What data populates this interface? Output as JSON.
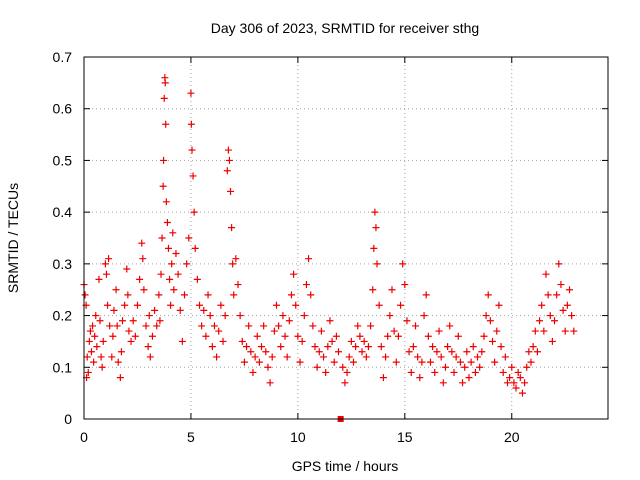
{
  "chart_data": {
    "type": "scatter",
    "title": "Day 306 of 2023, SRMTID for receiver sthg",
    "xlabel": "GPS time / hours",
    "ylabel": "SRMTID / TECUs",
    "xlim": [
      0,
      24.5
    ],
    "ylim": [
      0,
      0.7
    ],
    "xticks": [
      0,
      5,
      10,
      15,
      20
    ],
    "xtick_labels": [
      "0",
      "5",
      "10",
      "15",
      "20"
    ],
    "yticks": [
      0,
      0.1,
      0.2,
      0.3,
      0.4,
      0.5,
      0.6,
      0.7
    ],
    "ytick_labels": [
      "0",
      "0.1",
      "0.2",
      "0.3",
      "0.4",
      "0.5",
      "0.6",
      "0.7"
    ],
    "grid": true,
    "marker": "plus",
    "series_color": "#ee0000",
    "outlier_marker": {
      "x": 12.0,
      "y": 0.0,
      "shape": "square"
    },
    "series": [
      {
        "name": "SRMTID",
        "points": [
          [
            0.0,
            0.26
          ],
          [
            0.05,
            0.24
          ],
          [
            0.1,
            0.22
          ],
          [
            0.12,
            0.08
          ],
          [
            0.15,
            0.12
          ],
          [
            0.2,
            0.09
          ],
          [
            0.25,
            0.15
          ],
          [
            0.3,
            0.17
          ],
          [
            0.35,
            0.13
          ],
          [
            0.4,
            0.18
          ],
          [
            0.45,
            0.11
          ],
          [
            0.5,
            0.16
          ],
          [
            0.55,
            0.2
          ],
          [
            0.6,
            0.14
          ],
          [
            0.7,
            0.27
          ],
          [
            0.75,
            0.19
          ],
          [
            0.8,
            0.12
          ],
          [
            0.85,
            0.1
          ],
          [
            0.9,
            0.15
          ],
          [
            1.0,
            0.3
          ],
          [
            1.05,
            0.28
          ],
          [
            1.1,
            0.22
          ],
          [
            1.15,
            0.31
          ],
          [
            1.2,
            0.18
          ],
          [
            1.3,
            0.12
          ],
          [
            1.35,
            0.16
          ],
          [
            1.4,
            0.21
          ],
          [
            1.5,
            0.25
          ],
          [
            1.55,
            0.18
          ],
          [
            1.6,
            0.11
          ],
          [
            1.7,
            0.08
          ],
          [
            1.75,
            0.13
          ],
          [
            1.8,
            0.19
          ],
          [
            1.9,
            0.22
          ],
          [
            2.0,
            0.29
          ],
          [
            2.05,
            0.24
          ],
          [
            2.1,
            0.17
          ],
          [
            2.2,
            0.15
          ],
          [
            2.3,
            0.19
          ],
          [
            2.4,
            0.16
          ],
          [
            2.5,
            0.22
          ],
          [
            2.6,
            0.27
          ],
          [
            2.7,
            0.34
          ],
          [
            2.75,
            0.31
          ],
          [
            2.8,
            0.25
          ],
          [
            2.9,
            0.18
          ],
          [
            3.0,
            0.14
          ],
          [
            3.05,
            0.2
          ],
          [
            3.1,
            0.12
          ],
          [
            3.2,
            0.16
          ],
          [
            3.3,
            0.21
          ],
          [
            3.4,
            0.18
          ],
          [
            3.5,
            0.24
          ],
          [
            3.55,
            0.19
          ],
          [
            3.6,
            0.28
          ],
          [
            3.65,
            0.35
          ],
          [
            3.7,
            0.45
          ],
          [
            3.72,
            0.5
          ],
          [
            3.75,
            0.62
          ],
          [
            3.78,
            0.66
          ],
          [
            3.8,
            0.65
          ],
          [
            3.82,
            0.57
          ],
          [
            3.85,
            0.42
          ],
          [
            3.9,
            0.38
          ],
          [
            3.95,
            0.33
          ],
          [
            4.0,
            0.27
          ],
          [
            4.05,
            0.22
          ],
          [
            4.1,
            0.3
          ],
          [
            4.15,
            0.36
          ],
          [
            4.2,
            0.25
          ],
          [
            4.3,
            0.32
          ],
          [
            4.4,
            0.28
          ],
          [
            4.5,
            0.21
          ],
          [
            4.6,
            0.15
          ],
          [
            4.7,
            0.24
          ],
          [
            4.8,
            0.3
          ],
          [
            4.9,
            0.35
          ],
          [
            5.0,
            0.63
          ],
          [
            5.02,
            0.57
          ],
          [
            5.05,
            0.52
          ],
          [
            5.1,
            0.47
          ],
          [
            5.15,
            0.4
          ],
          [
            5.2,
            0.33
          ],
          [
            5.3,
            0.27
          ],
          [
            5.4,
            0.22
          ],
          [
            5.5,
            0.18
          ],
          [
            5.6,
            0.21
          ],
          [
            5.7,
            0.16
          ],
          [
            5.8,
            0.24
          ],
          [
            5.9,
            0.2
          ],
          [
            6.0,
            0.14
          ],
          [
            6.1,
            0.18
          ],
          [
            6.2,
            0.12
          ],
          [
            6.3,
            0.17
          ],
          [
            6.4,
            0.22
          ],
          [
            6.5,
            0.15
          ],
          [
            6.6,
            0.2
          ],
          [
            6.7,
            0.48
          ],
          [
            6.75,
            0.52
          ],
          [
            6.8,
            0.5
          ],
          [
            6.85,
            0.44
          ],
          [
            6.9,
            0.37
          ],
          [
            6.95,
            0.3
          ],
          [
            7.0,
            0.24
          ],
          [
            7.1,
            0.31
          ],
          [
            7.2,
            0.26
          ],
          [
            7.3,
            0.2
          ],
          [
            7.4,
            0.15
          ],
          [
            7.5,
            0.11
          ],
          [
            7.6,
            0.14
          ],
          [
            7.7,
            0.18
          ],
          [
            7.8,
            0.13
          ],
          [
            7.9,
            0.09
          ],
          [
            8.0,
            0.12
          ],
          [
            8.1,
            0.16
          ],
          [
            8.2,
            0.11
          ],
          [
            8.3,
            0.14
          ],
          [
            8.4,
            0.18
          ],
          [
            8.5,
            0.13
          ],
          [
            8.6,
            0.1
          ],
          [
            8.7,
            0.07
          ],
          [
            8.8,
            0.12
          ],
          [
            8.9,
            0.17
          ],
          [
            9.0,
            0.22
          ],
          [
            9.1,
            0.18
          ],
          [
            9.2,
            0.14
          ],
          [
            9.3,
            0.2
          ],
          [
            9.4,
            0.16
          ],
          [
            9.5,
            0.12
          ],
          [
            9.6,
            0.19
          ],
          [
            9.7,
            0.24
          ],
          [
            9.8,
            0.28
          ],
          [
            9.9,
            0.22
          ],
          [
            10.0,
            0.16
          ],
          [
            10.1,
            0.11
          ],
          [
            10.2,
            0.15
          ],
          [
            10.3,
            0.2
          ],
          [
            10.4,
            0.26
          ],
          [
            10.5,
            0.31
          ],
          [
            10.6,
            0.24
          ],
          [
            10.7,
            0.18
          ],
          [
            10.8,
            0.14
          ],
          [
            10.9,
            0.1
          ],
          [
            11.0,
            0.13
          ],
          [
            11.1,
            0.17
          ],
          [
            11.2,
            0.12
          ],
          [
            11.3,
            0.09
          ],
          [
            11.4,
            0.14
          ],
          [
            11.5,
            0.19
          ],
          [
            11.6,
            0.15
          ],
          [
            11.7,
            0.11
          ],
          [
            11.8,
            0.16
          ],
          [
            11.9,
            0.13
          ],
          [
            12.1,
            0.1
          ],
          [
            12.2,
            0.07
          ],
          [
            12.3,
            0.09
          ],
          [
            12.4,
            0.12
          ],
          [
            12.5,
            0.15
          ],
          [
            12.6,
            0.11
          ],
          [
            12.7,
            0.14
          ],
          [
            12.8,
            0.18
          ],
          [
            12.9,
            0.16
          ],
          [
            13.0,
            0.13
          ],
          [
            13.1,
            0.15
          ],
          [
            13.2,
            0.12
          ],
          [
            13.3,
            0.14
          ],
          [
            13.4,
            0.18
          ],
          [
            13.5,
            0.25
          ],
          [
            13.55,
            0.33
          ],
          [
            13.6,
            0.4
          ],
          [
            13.65,
            0.37
          ],
          [
            13.7,
            0.3
          ],
          [
            13.8,
            0.22
          ],
          [
            13.9,
            0.14
          ],
          [
            14.0,
            0.08
          ],
          [
            14.1,
            0.12
          ],
          [
            14.2,
            0.16
          ],
          [
            14.3,
            0.2
          ],
          [
            14.4,
            0.25
          ],
          [
            14.5,
            0.17
          ],
          [
            14.6,
            0.11
          ],
          [
            14.7,
            0.16
          ],
          [
            14.8,
            0.22
          ],
          [
            14.9,
            0.3
          ],
          [
            15.0,
            0.26
          ],
          [
            15.1,
            0.19
          ],
          [
            15.2,
            0.13
          ],
          [
            15.3,
            0.09
          ],
          [
            15.4,
            0.14
          ],
          [
            15.5,
            0.18
          ],
          [
            15.6,
            0.12
          ],
          [
            15.7,
            0.08
          ],
          [
            15.8,
            0.11
          ],
          [
            15.9,
            0.2
          ],
          [
            16.0,
            0.24
          ],
          [
            16.1,
            0.16
          ],
          [
            16.2,
            0.11
          ],
          [
            16.3,
            0.14
          ],
          [
            16.4,
            0.09
          ],
          [
            16.5,
            0.13
          ],
          [
            16.6,
            0.17
          ],
          [
            16.7,
            0.12
          ],
          [
            16.8,
            0.07
          ],
          [
            16.9,
            0.1
          ],
          [
            17.0,
            0.14
          ],
          [
            17.1,
            0.18
          ],
          [
            17.2,
            0.13
          ],
          [
            17.3,
            0.09
          ],
          [
            17.4,
            0.12
          ],
          [
            17.5,
            0.16
          ],
          [
            17.6,
            0.11
          ],
          [
            17.7,
            0.07
          ],
          [
            17.8,
            0.1
          ],
          [
            17.9,
            0.13
          ],
          [
            18.0,
            0.08
          ],
          [
            18.1,
            0.11
          ],
          [
            18.2,
            0.14
          ],
          [
            18.3,
            0.09
          ],
          [
            18.4,
            0.12
          ],
          [
            18.5,
            0.1
          ],
          [
            18.6,
            0.13
          ],
          [
            18.7,
            0.16
          ],
          [
            18.8,
            0.2
          ],
          [
            18.9,
            0.24
          ],
          [
            19.0,
            0.19
          ],
          [
            19.1,
            0.15
          ],
          [
            19.2,
            0.11
          ],
          [
            19.3,
            0.17
          ],
          [
            19.4,
            0.22
          ],
          [
            19.5,
            0.14
          ],
          [
            19.6,
            0.09
          ],
          [
            19.7,
            0.12
          ],
          [
            19.8,
            0.07
          ],
          [
            19.9,
            0.08
          ],
          [
            20.0,
            0.1
          ],
          [
            20.1,
            0.07
          ],
          [
            20.2,
            0.06
          ],
          [
            20.3,
            0.09
          ],
          [
            20.4,
            0.08
          ],
          [
            20.5,
            0.05
          ],
          [
            20.6,
            0.07
          ],
          [
            20.7,
            0.1
          ],
          [
            20.8,
            0.13
          ],
          [
            20.9,
            0.11
          ],
          [
            21.0,
            0.14
          ],
          [
            21.1,
            0.17
          ],
          [
            21.2,
            0.13
          ],
          [
            21.3,
            0.19
          ],
          [
            21.4,
            0.22
          ],
          [
            21.5,
            0.17
          ],
          [
            21.6,
            0.28
          ],
          [
            21.7,
            0.24
          ],
          [
            21.8,
            0.2
          ],
          [
            21.9,
            0.15
          ],
          [
            22.0,
            0.19
          ],
          [
            22.1,
            0.24
          ],
          [
            22.2,
            0.3
          ],
          [
            22.3,
            0.26
          ],
          [
            22.4,
            0.21
          ],
          [
            22.5,
            0.17
          ],
          [
            22.6,
            0.22
          ],
          [
            22.7,
            0.25
          ],
          [
            22.8,
            0.2
          ],
          [
            22.9,
            0.17
          ]
        ]
      }
    ]
  }
}
